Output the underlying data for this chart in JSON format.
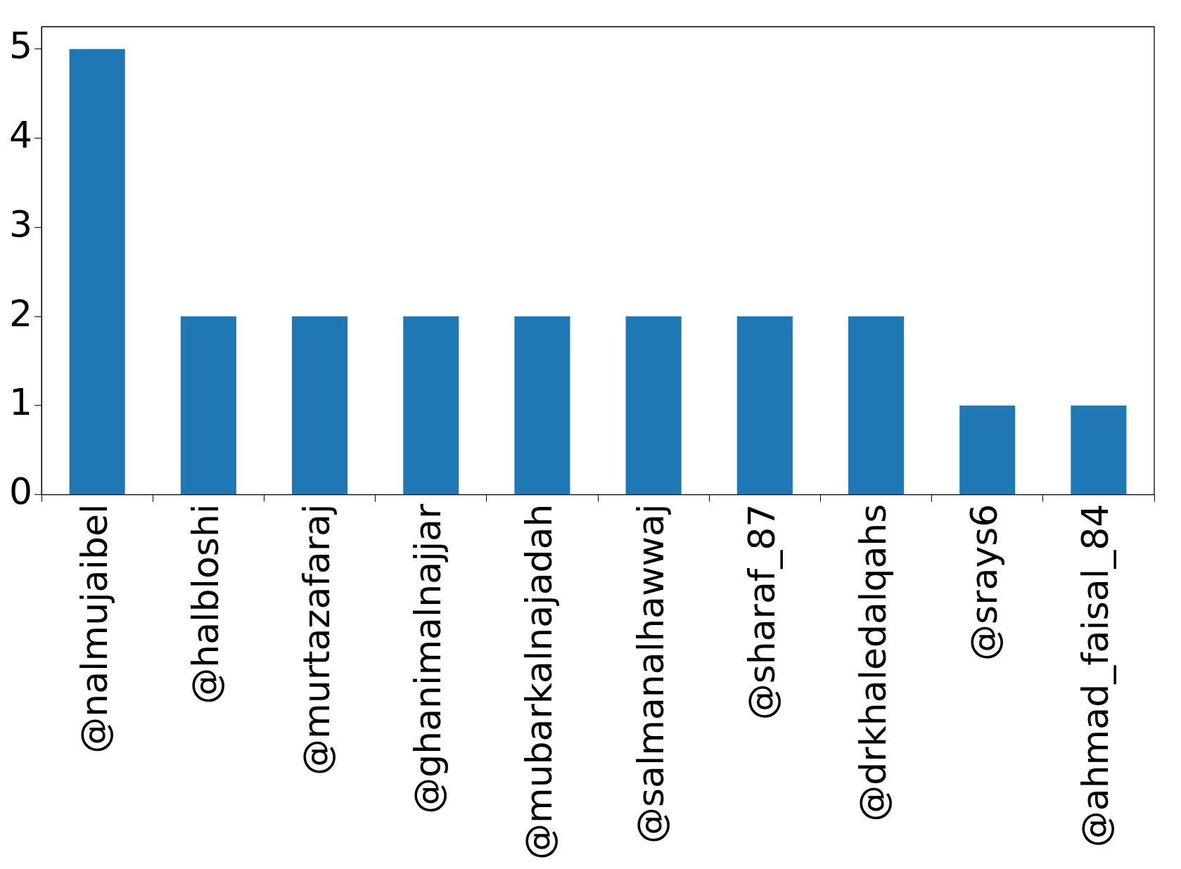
{
  "chart_data": {
    "type": "bar",
    "categories": [
      "@nalmujaibel",
      "@halbloshi",
      "@murtazafaraj",
      "@ghanimalnajjar",
      "@mubarkalnajadah",
      "@salmanalhawwaj",
      "@sharaf_87",
      "@drkhaledalqahs",
      "@srays6",
      "@ahmad_faisal_84"
    ],
    "values": [
      5,
      2,
      2,
      2,
      2,
      2,
      2,
      2,
      1,
      1
    ],
    "color": "#1f77b4",
    "ylim": [
      0,
      5.25
    ],
    "yticks": [
      0,
      1,
      2,
      3,
      4,
      5
    ],
    "grid": false,
    "legend": false
  }
}
